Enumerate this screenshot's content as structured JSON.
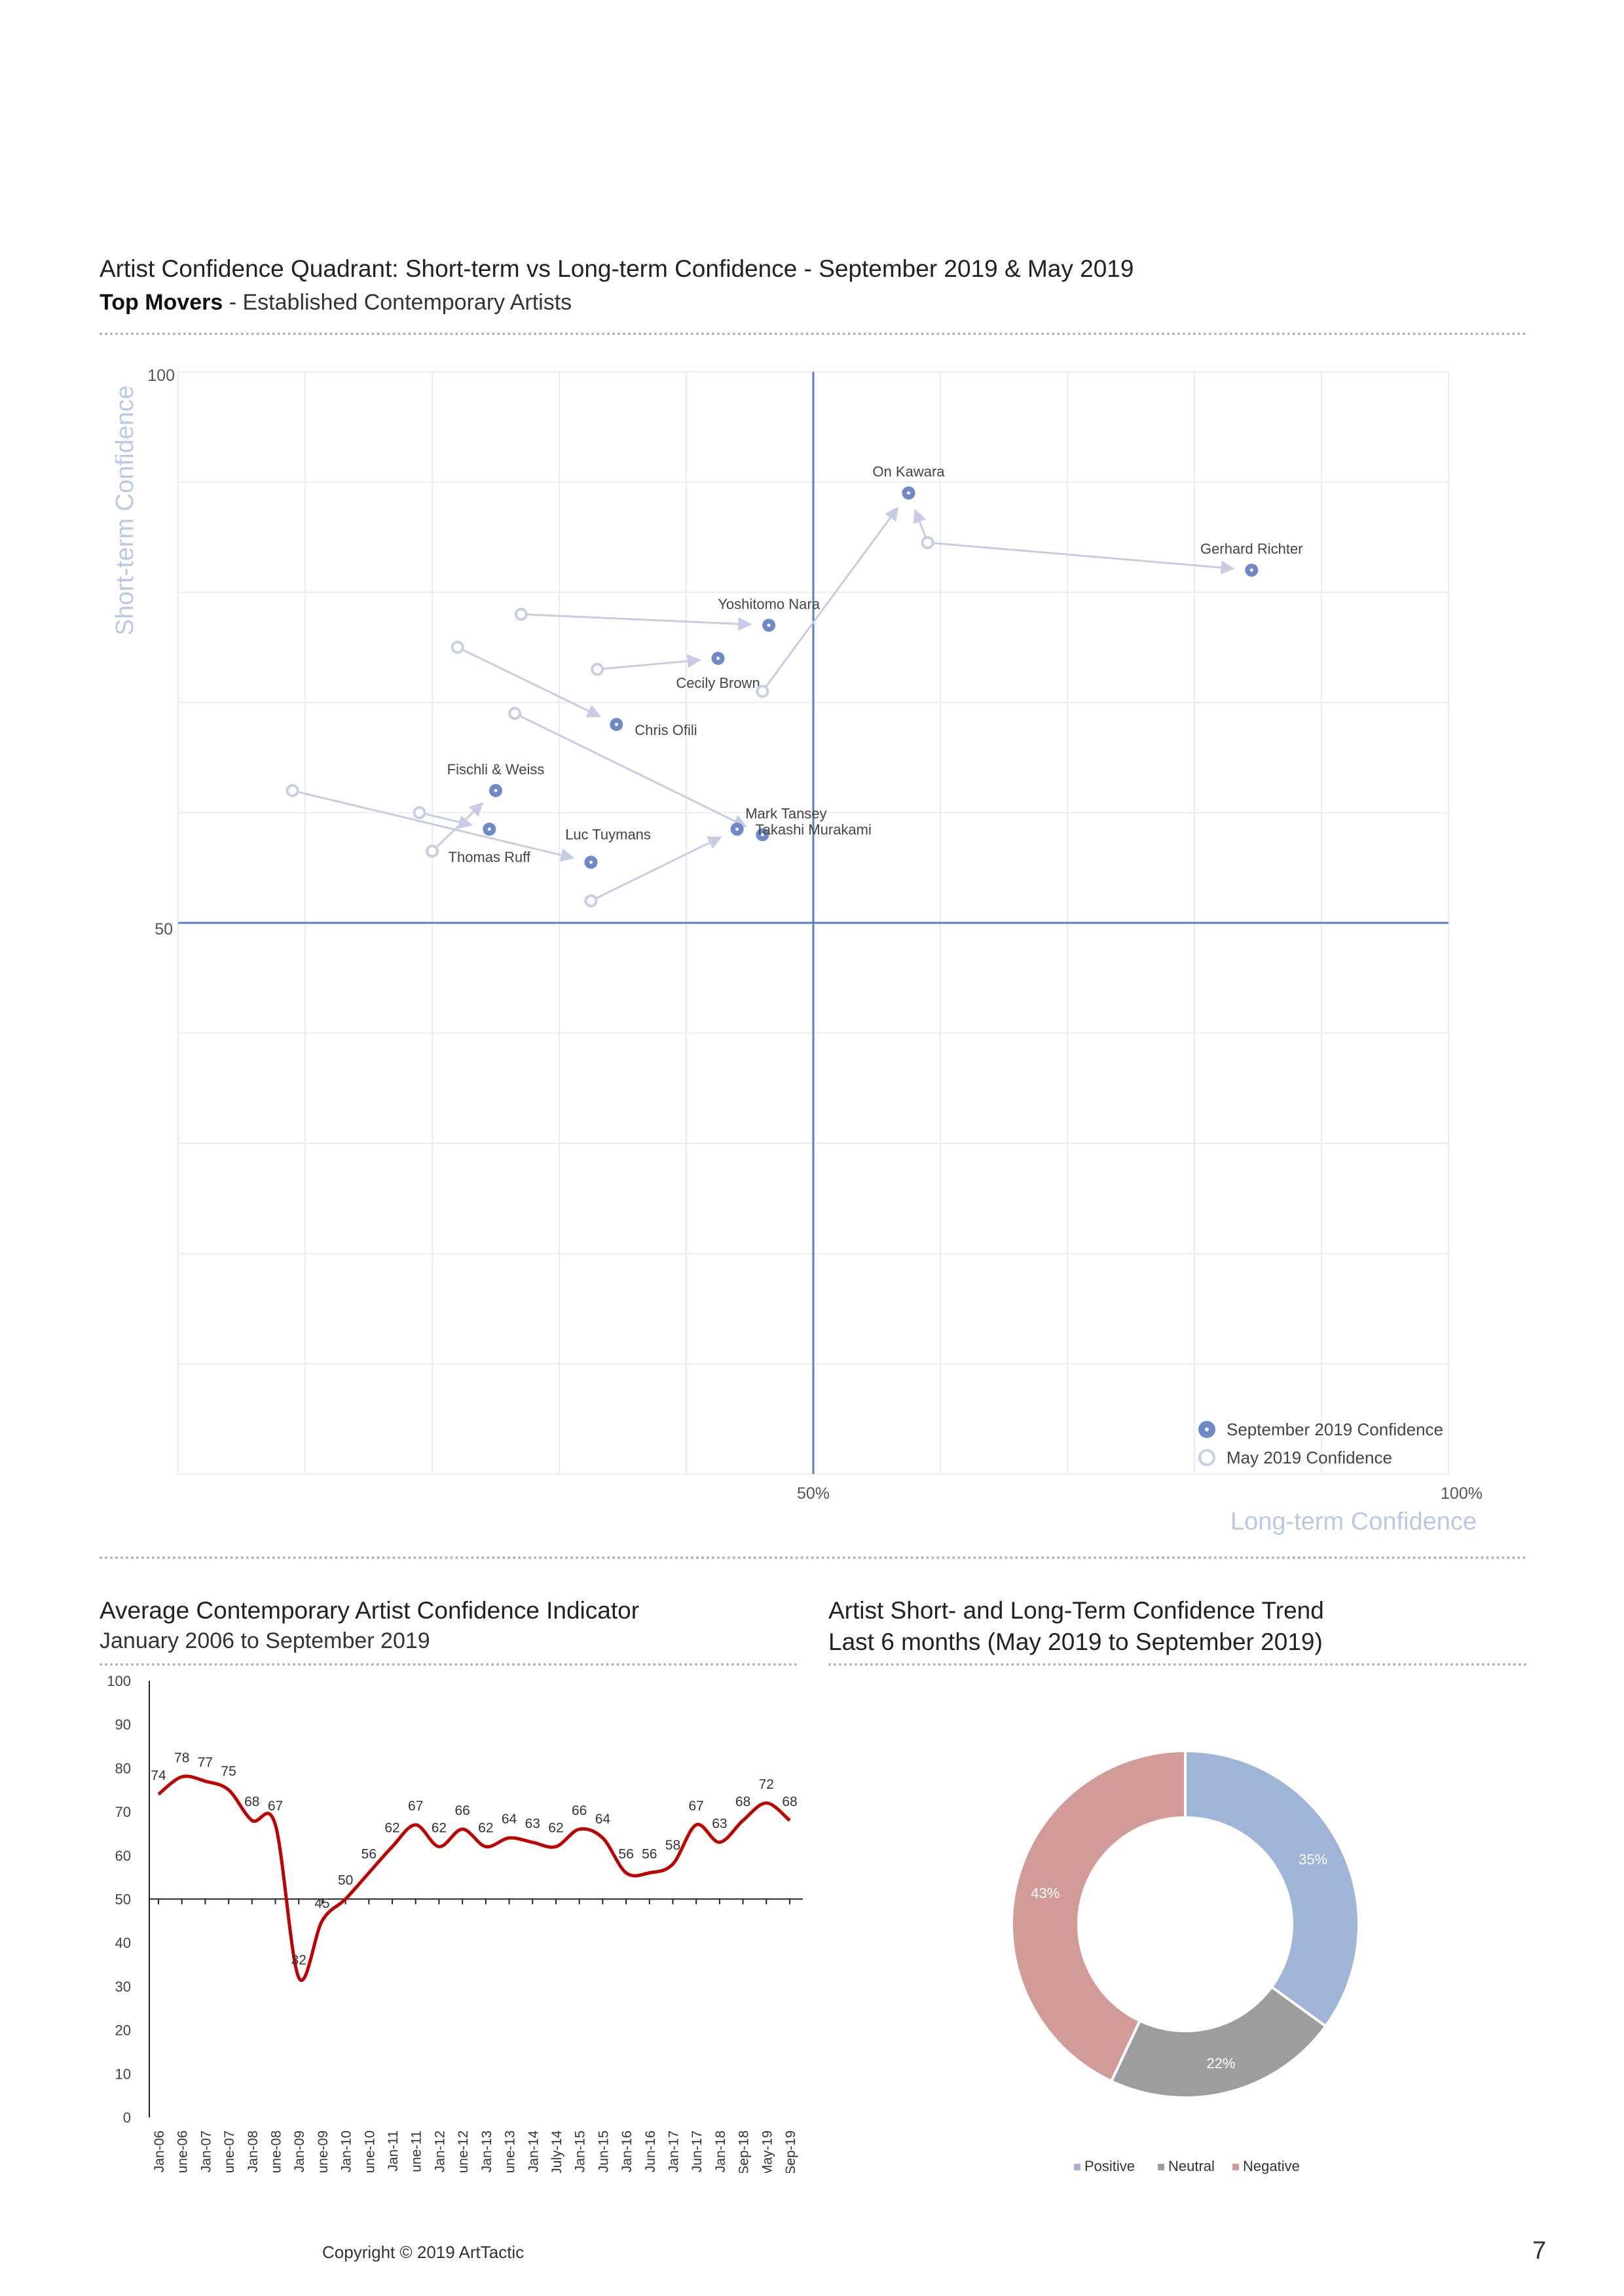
{
  "page": {
    "number": "7",
    "copyright": "Copyright © 2019 ArtTactic"
  },
  "quadrant": {
    "title": "Artist Confidence Quadrant: Short-term vs Long-term Confidence - September 2019 & May 2019",
    "subtitle_bold": "Top Movers",
    "subtitle_rest": " - Established Contemporary Artists"
  },
  "line_section": {
    "title": "Average Contemporary Artist Confidence Indicator",
    "subtitle": "January 2006 to September 2019"
  },
  "donut_section": {
    "title": "Artist Short- and Long-Term Confidence Trend",
    "subtitle": "Last 6 months (May 2019 to September 2019)"
  },
  "colors": {
    "sep": "#6f88c6",
    "may": "#c9cde6",
    "arrow": "#c8cbe4",
    "divider": "#5b7fc0",
    "axis_title": "#b9c8e6",
    "line": "#c00000",
    "positive": "#9fb5d7",
    "neutral": "#9d9d9d",
    "negative": "#d39b98"
  },
  "chart_data": [
    {
      "type": "scatter",
      "xlabel": "Long-term Confidence",
      "ylabel": "Short-term Confidence",
      "xlim": [
        0,
        100
      ],
      "ylim": [
        0,
        100
      ],
      "x_tick_labels": [
        "50%",
        "100%"
      ],
      "y_tick_labels": [
        "100",
        "50"
      ],
      "grid": true,
      "legend_position": "bottom-right",
      "series_names": [
        "September 2019 Confidence",
        "May 2019 Confidence"
      ],
      "points": [
        {
          "name": "On Kawara",
          "may": [
            59,
            84.5
          ],
          "sep": [
            57.5,
            89
          ]
        },
        {
          "name": "Gerhard Richter",
          "may": [
            59,
            84.5
          ],
          "sep": [
            84.5,
            82
          ]
        },
        {
          "name": "Yoshitomo Nara",
          "may": [
            27,
            78
          ],
          "sep": [
            46.5,
            77
          ]
        },
        {
          "name": "Cecily Brown",
          "may": [
            33,
            73
          ],
          "sep": [
            42.5,
            74
          ]
        },
        {
          "name": "Chris Ofili",
          "may": [
            22,
            75
          ],
          "sep": [
            34.5,
            68
          ]
        },
        {
          "name": "Mark Tansey",
          "may": [
            26.5,
            69
          ],
          "sep": [
            46,
            58
          ]
        },
        {
          "name": "Fischli & Weiss",
          "may": [
            20,
            56.5
          ],
          "sep": [
            25,
            62
          ]
        },
        {
          "name": "Thomas Ruff",
          "may": [
            19,
            60
          ],
          "sep": [
            24.5,
            58.5
          ]
        },
        {
          "name": "Luc Tuymans",
          "may": [
            9,
            62
          ],
          "sep": [
            32.5,
            55.5
          ]
        },
        {
          "name": "Takashi Murakami",
          "may": [
            32.5,
            52
          ],
          "sep": [
            44,
            58.5
          ]
        },
        {
          "name": "On Kawara (May)",
          "may": [
            46,
            71
          ],
          "sep": [
            57.5,
            89
          ]
        }
      ]
    },
    {
      "type": "line",
      "ylim": [
        0,
        100
      ],
      "y_ticks": [
        "100",
        "90",
        "80",
        "70",
        "60",
        "50",
        "40",
        "30",
        "20",
        "10",
        "0"
      ],
      "categories": [
        "Jan-06",
        "June-06",
        "Jan-07",
        "June-07",
        "Jan-08",
        "June-08",
        "Jan-09",
        "June-09",
        "Jan-10",
        "June-10",
        "Jan-11",
        "June-11",
        "Jan-12",
        "June-12",
        "Jan-13",
        "June-13",
        "Jan-14",
        "July-14",
        "Jan-15",
        "Jun-15",
        "Jan-16",
        "Jun-16",
        "Jan-17",
        "Jun-17",
        "Jan-18",
        "Sep-18",
        "May-19",
        "Sep-19"
      ],
      "values": [
        74,
        78,
        77,
        75,
        68,
        67,
        32,
        45,
        50,
        56,
        62,
        67,
        62,
        66,
        62,
        64,
        63,
        62,
        66,
        64,
        56,
        56,
        58,
        67,
        63,
        68,
        72,
        68
      ],
      "data_labels": [
        "74",
        "78",
        "77",
        "75",
        "68",
        "67",
        "32",
        "45",
        "50",
        "56",
        "62",
        "67",
        "62",
        "66",
        "62",
        "64",
        "63",
        "62",
        "66",
        "64",
        "56",
        "56",
        "58",
        "67",
        "63",
        "68",
        "72",
        "68"
      ]
    },
    {
      "type": "pie",
      "categories": [
        "Positive",
        "Neutral",
        "Negative"
      ],
      "values": [
        35,
        22,
        43
      ],
      "data_labels": [
        "35%",
        "22%",
        "43%"
      ],
      "legend_position": "bottom"
    }
  ]
}
